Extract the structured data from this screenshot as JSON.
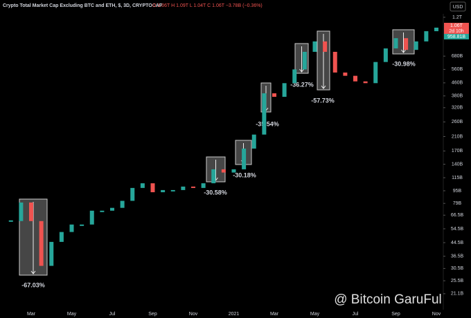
{
  "chart_data": {
    "type": "candlestick",
    "title": "Crypto Total Market Cap Excluding BTC and ETH, $, 3D, CRYPTOCAP",
    "ohlc_text": "O 1.06T  H 1.09T  L 1.04T  C 1.06T  −3.78B (−0.36%)",
    "currency": "USD",
    "categories": [
      null,
      null,
      "Mar",
      null,
      null,
      null,
      "May",
      null,
      null,
      null,
      "Jul",
      null,
      null,
      null,
      "Sep",
      null,
      null,
      null,
      "Nov",
      null,
      null,
      null,
      "2021",
      null,
      null,
      null,
      "Mar",
      null,
      null,
      null,
      "May",
      null,
      null,
      null,
      "Jul",
      null,
      null,
      null,
      "Sep",
      null,
      null,
      null,
      "Nov"
    ],
    "values": [
      61,
      80,
      61,
      31.7,
      45,
      52,
      58,
      58,
      71,
      71,
      74,
      82,
      99,
      106,
      93,
      96,
      96,
      101,
      99,
      106,
      130,
      124,
      130,
      176,
      216,
      395,
      375,
      458,
      560,
      724,
      843,
      724,
      535,
      510,
      470,
      458,
      624,
      761,
      884,
      745,
      843,
      979,
      1031
    ],
    "up_color": "#26a69a",
    "down_color": "#ef5350",
    "log_scale": true,
    "grid": false,
    "ylim": [
      16.7,
      1396
    ],
    "yticks": [
      {
        "value": 1200,
        "label": "1.2T"
      },
      {
        "value": 680,
        "label": "680B"
      },
      {
        "value": 560,
        "label": "560B"
      },
      {
        "value": 460,
        "label": "460B"
      },
      {
        "value": 380,
        "label": "380B"
      },
      {
        "value": 320,
        "label": "320B"
      },
      {
        "value": 260,
        "label": "260B"
      },
      {
        "value": 210,
        "label": "210B"
      },
      {
        "value": 170,
        "label": "170B"
      },
      {
        "value": 140,
        "label": "140B"
      },
      {
        "value": 115,
        "label": "115B"
      },
      {
        "value": 95,
        "label": "95B"
      },
      {
        "value": 79,
        "label": "79B"
      },
      {
        "value": 66.5,
        "label": "66.5B"
      },
      {
        "value": 54.5,
        "label": "54.5B"
      },
      {
        "value": 44.5,
        "label": "44.5B"
      },
      {
        "value": 36.5,
        "label": "36.5B"
      },
      {
        "value": 30.5,
        "label": "30.5B"
      },
      {
        "value": 25.5,
        "label": "25.5B"
      },
      {
        "value": 21.1,
        "label": "21.1B"
      }
    ],
    "price_tags": [
      "1.06T",
      "2d 10h",
      "958.81B"
    ],
    "annotations": [
      "-67.03%",
      "-30.58%",
      "-30.18%",
      "-35.54%",
      "-36.27%",
      "-57.73%",
      "-30.98%"
    ],
    "watermark": "@ Bitcoin GaruFul"
  }
}
